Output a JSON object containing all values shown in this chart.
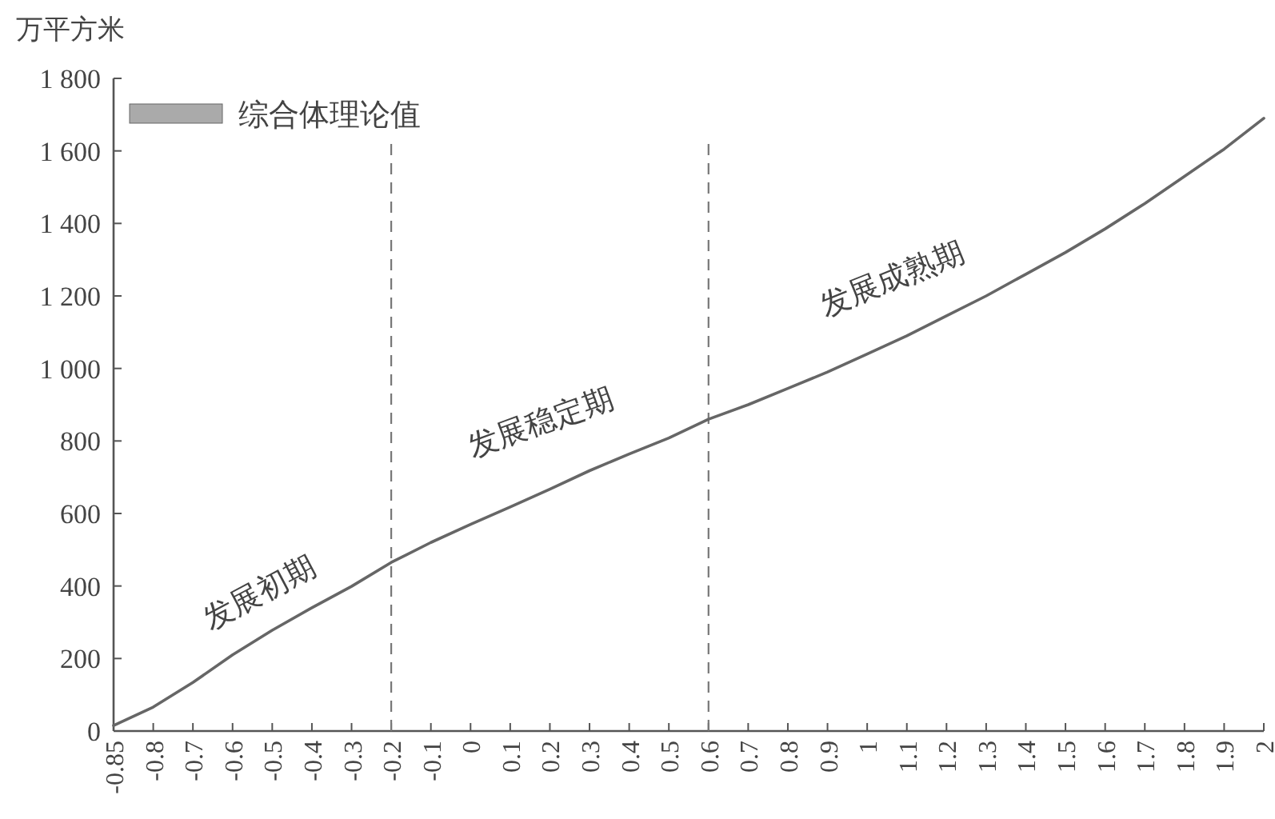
{
  "chart_data": {
    "type": "line",
    "ylabel": "万平方米",
    "categories": [
      "-0.85",
      "-0.8",
      "-0.7",
      "-0.6",
      "-0.5",
      "-0.4",
      "-0.3",
      "-0.2",
      "-0.1",
      "0",
      "0.1",
      "0.2",
      "0.3",
      "0.4",
      "0.5",
      "0.6",
      "0.7",
      "0.8",
      "0.9",
      "1",
      "1.1",
      "1.2",
      "1.3",
      "1.4",
      "1.5",
      "1.6",
      "1.7",
      "1.8",
      "1.9",
      "2"
    ],
    "series": [
      {
        "name": "综合体理论值",
        "color": "#666666",
        "values": [
          15,
          66,
          134,
          210,
          278,
          340,
          399,
          465,
          520,
          570,
          618,
          667,
          718,
          764,
          808,
          860,
          900,
          945,
          990,
          1040,
          1090,
          1145,
          1200,
          1260,
          1320,
          1385,
          1455,
          1530,
          1605,
          1690
        ]
      }
    ],
    "ylim": [
      0,
      1800
    ],
    "yticks": [
      0,
      200,
      400,
      600,
      800,
      {
        "value": 1000,
        "label": "1 000"
      },
      {
        "value": 1200,
        "label": "1 200"
      },
      {
        "value": 1400,
        "label": "1 400"
      },
      {
        "value": 1600,
        "label": "1 600"
      },
      {
        "value": 1800,
        "label": "1 800"
      }
    ],
    "ref_lines": [
      {
        "axis": "x",
        "value": "-0.2",
        "line_style": "dashed",
        "color": "#777777"
      },
      {
        "axis": "x",
        "value": "0.6",
        "line_style": "dashed",
        "color": "#777777"
      }
    ],
    "annotations": [
      "发展初期",
      "发展稳定期",
      "发展成熟期"
    ],
    "legend": "top left",
    "line_style": "solid"
  }
}
